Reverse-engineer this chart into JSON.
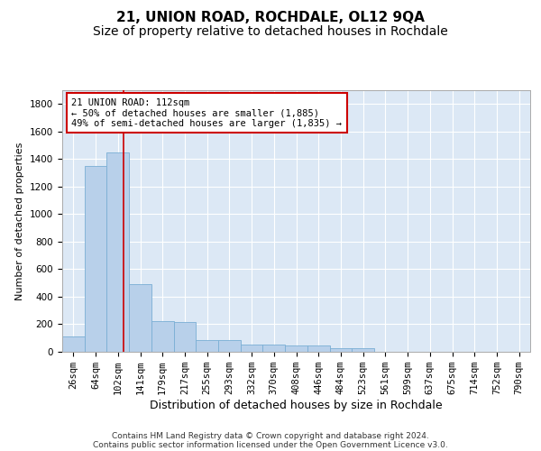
{
  "title": "21, UNION ROAD, ROCHDALE, OL12 9QA",
  "subtitle": "Size of property relative to detached houses in Rochdale",
  "xlabel": "Distribution of detached houses by size in Rochdale",
  "ylabel": "Number of detached properties",
  "categories": [
    "26sqm",
    "64sqm",
    "102sqm",
    "141sqm",
    "179sqm",
    "217sqm",
    "255sqm",
    "293sqm",
    "332sqm",
    "370sqm",
    "408sqm",
    "446sqm",
    "484sqm",
    "523sqm",
    "561sqm",
    "599sqm",
    "637sqm",
    "675sqm",
    "714sqm",
    "752sqm",
    "790sqm"
  ],
  "values": [
    110,
    1350,
    1450,
    490,
    220,
    215,
    85,
    85,
    55,
    55,
    45,
    45,
    25,
    25,
    0,
    0,
    0,
    0,
    0,
    0,
    0
  ],
  "bar_color": "#b8d0ea",
  "bar_edge_color": "#7aaed4",
  "background_color": "#dce8f5",
  "grid_color": "#ffffff",
  "annotation_text": "21 UNION ROAD: 112sqm\n← 50% of detached houses are smaller (1,885)\n49% of semi-detached houses are larger (1,835) →",
  "annotation_box_color": "#ffffff",
  "annotation_box_edge": "#cc0000",
  "ylim": [
    0,
    1900
  ],
  "yticks": [
    0,
    200,
    400,
    600,
    800,
    1000,
    1200,
    1400,
    1600,
    1800
  ],
  "footer_line1": "Contains HM Land Registry data © Crown copyright and database right 2024.",
  "footer_line2": "Contains public sector information licensed under the Open Government Licence v3.0.",
  "title_fontsize": 11,
  "subtitle_fontsize": 10,
  "xlabel_fontsize": 9,
  "ylabel_fontsize": 8,
  "tick_fontsize": 7.5,
  "annot_fontsize": 7.5,
  "footer_fontsize": 6.5
}
